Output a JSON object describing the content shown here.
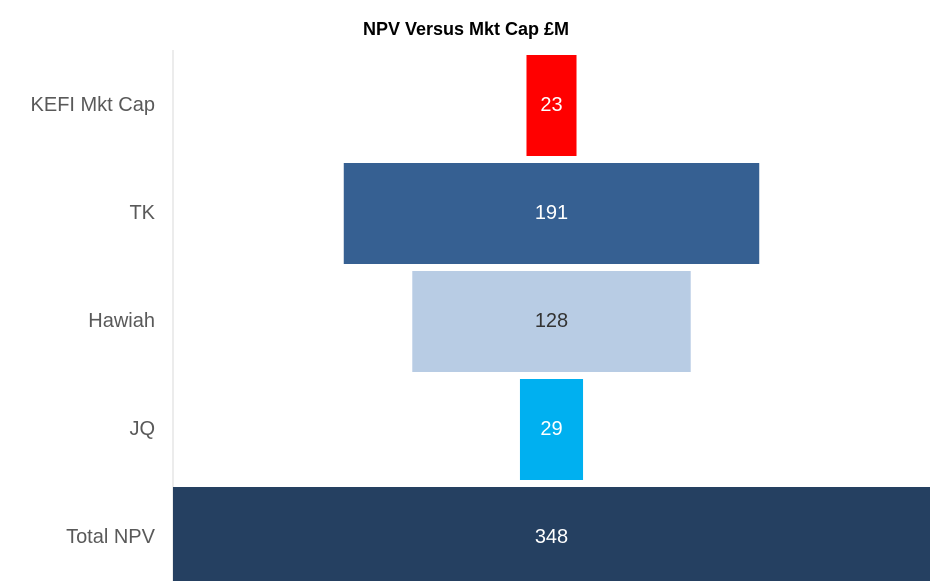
{
  "chart_data": {
    "type": "funnel",
    "title": "NPV Versus Mkt Cap £M",
    "categories": [
      "KEFI Mkt Cap",
      "TK",
      "Hawiah",
      "JQ",
      "Total NPV"
    ],
    "values": [
      23,
      191,
      128,
      29,
      348
    ],
    "colors": [
      "#ff0000",
      "#366092",
      "#b8cce4",
      "#00b0f0",
      "#254061"
    ]
  }
}
